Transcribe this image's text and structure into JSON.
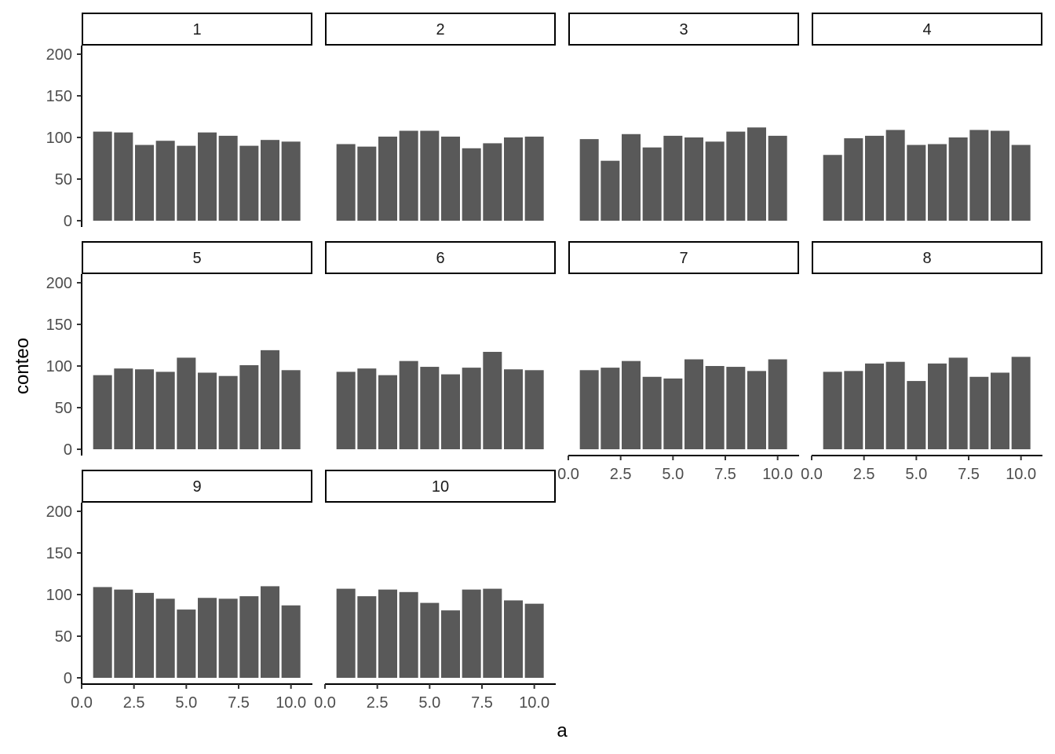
{
  "chart_data": {
    "type": "bar",
    "facet_layout": "wrap",
    "ncol": 4,
    "xlabel": "a",
    "ylabel": "conteo",
    "ylim": [
      0,
      200
    ],
    "xlim": [
      0,
      10.5
    ],
    "y_ticks": [
      "0",
      "50",
      "100",
      "150",
      "200"
    ],
    "x_ticks": [
      "0.0",
      "2.5",
      "5.0",
      "7.5",
      "10.0"
    ],
    "x_tick_values": [
      0,
      2.5,
      5,
      7.5,
      10
    ],
    "categories": [
      1,
      2,
      3,
      4,
      5,
      6,
      7,
      8,
      9,
      10
    ],
    "bar_color": "#595959",
    "grid": false,
    "facets": [
      {
        "label": "1",
        "values": [
          107,
          106,
          91,
          96,
          90,
          106,
          102,
          90,
          97,
          95
        ]
      },
      {
        "label": "2",
        "values": [
          92,
          89,
          101,
          108,
          108,
          101,
          87,
          93,
          100,
          101
        ]
      },
      {
        "label": "3",
        "values": [
          98,
          72,
          104,
          88,
          102,
          100,
          95,
          107,
          112,
          102
        ]
      },
      {
        "label": "4",
        "values": [
          79,
          99,
          102,
          109,
          91,
          92,
          100,
          109,
          108,
          91
        ]
      },
      {
        "label": "5",
        "values": [
          89,
          97,
          96,
          93,
          110,
          92,
          88,
          101,
          119,
          95
        ]
      },
      {
        "label": "6",
        "values": [
          93,
          97,
          89,
          106,
          99,
          90,
          98,
          117,
          96,
          95
        ]
      },
      {
        "label": "7",
        "values": [
          95,
          98,
          106,
          87,
          85,
          108,
          100,
          99,
          94,
          108
        ]
      },
      {
        "label": "8",
        "values": [
          93,
          94,
          103,
          105,
          82,
          103,
          110,
          87,
          92,
          111
        ]
      },
      {
        "label": "9",
        "values": [
          109,
          106,
          102,
          95,
          82,
          96,
          95,
          98,
          110,
          87
        ]
      },
      {
        "label": "10",
        "values": [
          107,
          98,
          106,
          103,
          90,
          81,
          106,
          107,
          93,
          89
        ]
      }
    ]
  }
}
